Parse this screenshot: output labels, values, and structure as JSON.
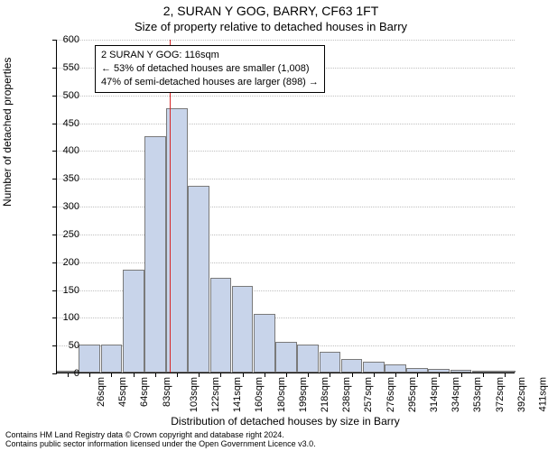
{
  "title": "2, SURAN Y GOG, BARRY, CF63 1FT",
  "subtitle": "Size of property relative to detached houses in Barry",
  "ylabel": "Number of detached properties",
  "xlabel": "Distribution of detached houses by size in Barry",
  "chart": {
    "type": "histogram",
    "background_color": "#ffffff",
    "grid_color": "#bfbfbf",
    "bar_fill": "#c8d4ea",
    "bar_stroke": "#7a7a7a",
    "vline_color": "#d62728",
    "ylim": [
      0,
      600
    ],
    "ytick_step": 50,
    "x_categories": [
      "26sqm",
      "45sqm",
      "64sqm",
      "83sqm",
      "103sqm",
      "122sqm",
      "141sqm",
      "160sqm",
      "180sqm",
      "199sqm",
      "218sqm",
      "238sqm",
      "257sqm",
      "276sqm",
      "295sqm",
      "314sqm",
      "334sqm",
      "353sqm",
      "372sqm",
      "392sqm",
      "411sqm"
    ],
    "values": [
      4,
      50,
      50,
      185,
      425,
      475,
      335,
      170,
      155,
      105,
      55,
      50,
      37,
      25,
      20,
      15,
      8,
      6,
      5,
      4,
      3
    ],
    "bar_width": 0.98,
    "vline_at_sqm": 116,
    "font_size_title": 14,
    "font_size_subtitle": 13,
    "font_size_ticks": 11,
    "font_size_labels": 12
  },
  "annotation": {
    "line1": "2 SURAN Y GOG: 116sqm",
    "line2": "← 53% of detached houses are smaller (1,008)",
    "line3": "47% of semi-detached houses are larger (898) →"
  },
  "footer": {
    "line1": "Contains HM Land Registry data © Crown copyright and database right 2024.",
    "line2": "Contains public sector information licensed under the Open Government Licence v3.0."
  }
}
